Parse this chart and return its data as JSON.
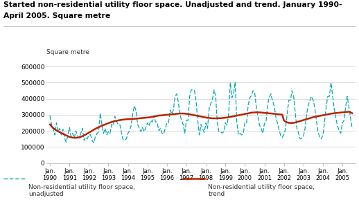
{
  "title_line1": "Started non-residential utility floor space. Unadjusted and trend. January 1990-",
  "title_line2": "April 2005. Square metre",
  "ylabel": "Square metre",
  "unadjusted_color": "#00AAAA",
  "trend_color": "#BB2200",
  "background_color": "#ffffff",
  "ylim": [
    0,
    650000
  ],
  "yticks": [
    0,
    100000,
    200000,
    300000,
    400000,
    500000,
    600000
  ],
  "ytick_labels": [
    "0",
    "100000",
    "200000",
    "300000",
    "400000",
    "500000",
    "600000"
  ],
  "unadjusted": [
    295000,
    240000,
    210000,
    175000,
    250000,
    195000,
    215000,
    175000,
    210000,
    155000,
    130000,
    170000,
    220000,
    165000,
    185000,
    155000,
    200000,
    170000,
    155000,
    185000,
    215000,
    140000,
    160000,
    150000,
    175000,
    175000,
    140000,
    125000,
    165000,
    185000,
    195000,
    310000,
    240000,
    185000,
    215000,
    175000,
    195000,
    185000,
    240000,
    235000,
    290000,
    260000,
    240000,
    240000,
    190000,
    145000,
    140000,
    150000,
    185000,
    200000,
    235000,
    310000,
    355000,
    325000,
    240000,
    215000,
    195000,
    220000,
    195000,
    220000,
    250000,
    230000,
    265000,
    255000,
    295000,
    255000,
    255000,
    200000,
    215000,
    185000,
    180000,
    215000,
    250000,
    250000,
    330000,
    305000,
    330000,
    415000,
    430000,
    380000,
    305000,
    265000,
    240000,
    185000,
    265000,
    265000,
    415000,
    455000,
    455000,
    450000,
    380000,
    260000,
    175000,
    240000,
    210000,
    190000,
    250000,
    215000,
    340000,
    370000,
    395000,
    455000,
    415000,
    250000,
    195000,
    195000,
    185000,
    195000,
    250000,
    235000,
    305000,
    500000,
    405000,
    430000,
    505000,
    255000,
    175000,
    185000,
    175000,
    185000,
    250000,
    245000,
    360000,
    405000,
    420000,
    450000,
    440000,
    350000,
    290000,
    235000,
    215000,
    185000,
    245000,
    255000,
    365000,
    410000,
    430000,
    385000,
    355000,
    290000,
    250000,
    210000,
    170000,
    160000,
    175000,
    215000,
    305000,
    390000,
    390000,
    450000,
    415000,
    310000,
    215000,
    185000,
    150000,
    155000,
    165000,
    215000,
    305000,
    360000,
    390000,
    415000,
    390000,
    345000,
    265000,
    195000,
    160000,
    150000,
    175000,
    255000,
    350000,
    415000,
    415000,
    500000,
    415000,
    335000,
    275000,
    230000,
    200000,
    185000,
    250000,
    265000,
    350000,
    415000,
    345000,
    280000,
    215000
  ],
  "trend": [
    240000,
    228000,
    218000,
    210000,
    203000,
    197000,
    192000,
    187000,
    182000,
    177000,
    172000,
    167000,
    163000,
    160000,
    158000,
    157000,
    157000,
    158000,
    160000,
    163000,
    167000,
    172000,
    177000,
    183000,
    189000,
    195000,
    201000,
    207000,
    213000,
    218000,
    223000,
    228000,
    232000,
    236000,
    240000,
    244000,
    248000,
    252000,
    255000,
    258000,
    261000,
    263000,
    265000,
    267000,
    268000,
    270000,
    271000,
    272000,
    273000,
    273000,
    274000,
    274000,
    275000,
    276000,
    277000,
    278000,
    279000,
    280000,
    281000,
    282000,
    283000,
    284000,
    285000,
    287000,
    289000,
    291000,
    293000,
    295000,
    296000,
    297000,
    298000,
    299000,
    300000,
    301000,
    302000,
    303000,
    304000,
    305000,
    306000,
    307000,
    308000,
    308000,
    308000,
    307000,
    306000,
    305000,
    303000,
    301000,
    299000,
    297000,
    295000,
    293000,
    291000,
    289000,
    287000,
    285000,
    283000,
    281000,
    280000,
    279000,
    278000,
    278000,
    278000,
    278000,
    279000,
    279000,
    280000,
    281000,
    282000,
    283000,
    285000,
    287000,
    289000,
    291000,
    293000,
    295000,
    297000,
    299000,
    301000,
    303000,
    305000,
    307000,
    309000,
    311000,
    313000,
    314000,
    315000,
    315000,
    315000,
    315000,
    314000,
    313000,
    312000,
    311000,
    310000,
    309000,
    308000,
    307000,
    306000,
    305000,
    304000,
    303000,
    302000,
    301000,
    265000,
    258000,
    253000,
    250000,
    249000,
    249000,
    250000,
    252000,
    255000,
    258000,
    261000,
    264000,
    267000,
    270000,
    273000,
    276000,
    279000,
    282000,
    285000,
    287000,
    289000,
    291000,
    293000,
    295000,
    297000,
    299000,
    301000,
    303000,
    305000,
    307000,
    308000,
    310000,
    311000,
    312000,
    313000,
    314000,
    315000,
    316000,
    317000,
    318000,
    320000,
    315000,
    310000
  ]
}
